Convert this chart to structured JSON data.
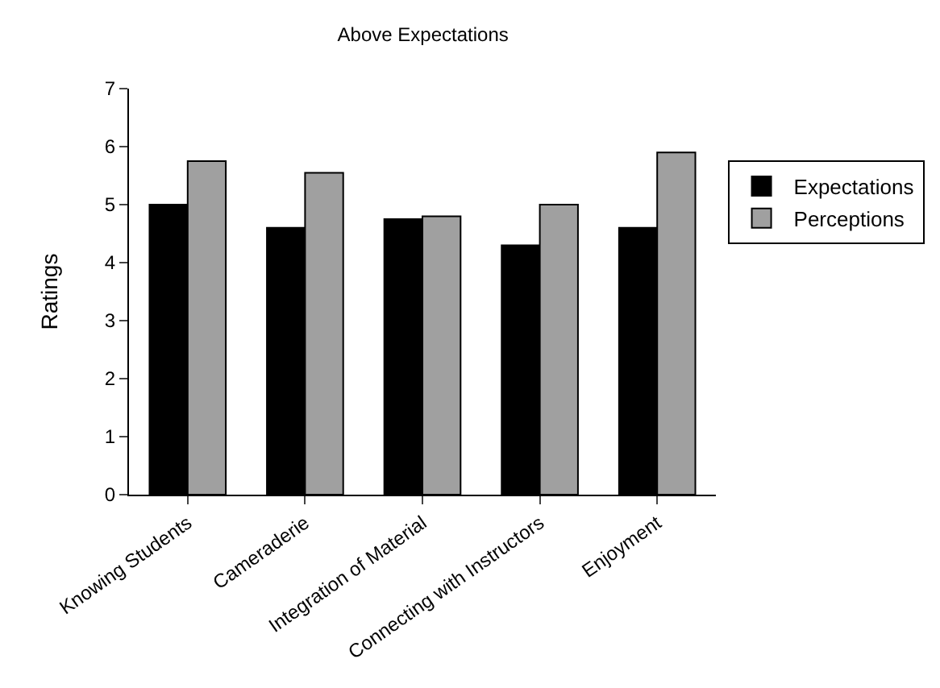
{
  "chart_data": {
    "type": "bar",
    "title": "Above Expectations",
    "ylabel": "Ratings",
    "categories": [
      "Knowing Students",
      "Cameraderie",
      "Integration of Material",
      "Connecting with Instructors",
      "Enjoyment"
    ],
    "series": [
      {
        "name": "Expectations",
        "color": "#000000",
        "values": [
          5.0,
          4.6,
          4.75,
          4.3,
          4.6
        ]
      },
      {
        "name": "Perceptions",
        "color": "#a0a0a0",
        "values": [
          5.75,
          5.55,
          4.8,
          5.0,
          5.9
        ]
      }
    ],
    "ylim": [
      0,
      7
    ],
    "yticks": [
      0,
      1,
      2,
      3,
      4,
      5,
      6,
      7
    ],
    "grid": false,
    "legend": "right"
  }
}
